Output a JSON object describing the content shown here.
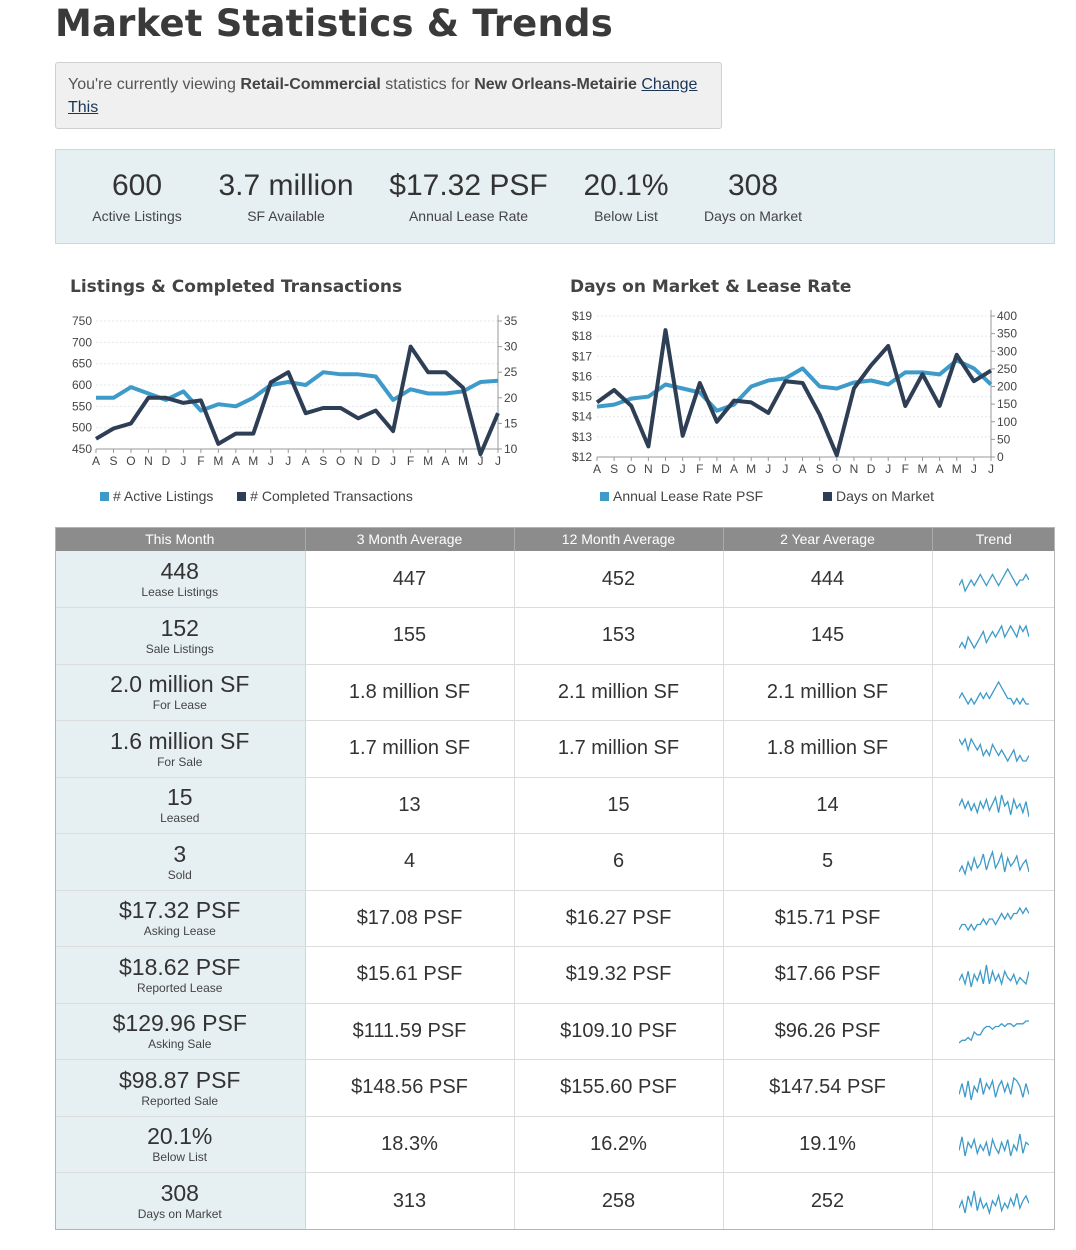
{
  "page": {
    "title": "Market Statistics & Trends",
    "viewing_prefix": "You're currently viewing ",
    "property_type": "Retail-Commercial",
    "viewing_mid": " statistics for ",
    "market": "New Orleans-Metairie",
    "change_link": "Change This"
  },
  "summary": [
    {
      "value": "600",
      "label": "Active Listings"
    },
    {
      "value": "3.7 million",
      "label": "SF Available"
    },
    {
      "value": "$17.32 PSF",
      "label": "Annual Lease Rate"
    },
    {
      "value": "20.1%",
      "label": "Below List"
    },
    {
      "value": "308",
      "label": "Days on Market"
    }
  ],
  "colors": {
    "light_series": "#3d9ac9",
    "dark_series": "#2e3e55",
    "sparkline": "#3d9ac9"
  },
  "chart_data": [
    {
      "type": "line",
      "title": "Listings & Completed Transactions",
      "categories": [
        "A",
        "S",
        "O",
        "N",
        "D",
        "J",
        "F",
        "M",
        "A",
        "M",
        "J",
        "J",
        "A",
        "S",
        "O",
        "N",
        "D",
        "J",
        "F",
        "M",
        "A",
        "M",
        "J",
        "J"
      ],
      "left_ylim": [
        450,
        750
      ],
      "left_ticks": [
        "750",
        "700",
        "650",
        "600",
        "550",
        "500",
        "450"
      ],
      "right_ylim": [
        10,
        35
      ],
      "right_ticks": [
        "35",
        "30",
        "25",
        "20",
        "15",
        "10"
      ],
      "grid": true,
      "series": [
        {
          "name": "# Active Listings",
          "axis": "left",
          "color": "#3d9ac9",
          "values": [
            570,
            570,
            595,
            580,
            565,
            585,
            540,
            555,
            550,
            570,
            600,
            607,
            600,
            630,
            625,
            625,
            620,
            565,
            590,
            580,
            580,
            585,
            607,
            610
          ]
        },
        {
          "name": "# Completed Transactions",
          "axis": "right",
          "color": "#2e3e55",
          "values": [
            12,
            14,
            15,
            20,
            20,
            19,
            19.5,
            11,
            13,
            13,
            23,
            25,
            17,
            18,
            18,
            16,
            17.5,
            13.5,
            30,
            25,
            25,
            22,
            9,
            17
          ]
        }
      ]
    },
    {
      "type": "line",
      "title": "Days on Market & Lease Rate",
      "categories": [
        "A",
        "S",
        "O",
        "N",
        "D",
        "J",
        "F",
        "M",
        "A",
        "M",
        "J",
        "J",
        "A",
        "S",
        "O",
        "N",
        "D",
        "J",
        "F",
        "M",
        "A",
        "M",
        "J",
        "J"
      ],
      "left_ylim": [
        12,
        19
      ],
      "left_ticks": [
        "$19",
        "$18",
        "$17",
        "$16",
        "$15",
        "$14",
        "$13",
        "$12"
      ],
      "right_ylim": [
        0,
        400
      ],
      "right_ticks": [
        "400",
        "350",
        "300",
        "250",
        "200",
        "150",
        "100",
        "50",
        "0"
      ],
      "grid": true,
      "series": [
        {
          "name": "Annual Lease Rate PSF",
          "axis": "left",
          "color": "#3d9ac9",
          "values": [
            14.5,
            14.6,
            14.9,
            15.0,
            15.6,
            15.4,
            15.2,
            14.3,
            14.6,
            15.5,
            15.8,
            15.9,
            16.4,
            15.5,
            15.4,
            15.7,
            15.8,
            15.6,
            16.2,
            16.2,
            16.1,
            16.8,
            16.4,
            15.6
          ]
        },
        {
          "name": "Days on Market",
          "axis": "right",
          "color": "#2e3e55",
          "values": [
            155,
            190,
            145,
            30,
            360,
            60,
            210,
            100,
            160,
            155,
            125,
            215,
            210,
            120,
            5,
            195,
            260,
            315,
            145,
            235,
            145,
            290,
            215,
            245
          ]
        }
      ]
    }
  ],
  "table": {
    "headers": [
      "This Month",
      "3 Month Average",
      "12 Month Average",
      "2 Year Average",
      "Trend"
    ],
    "rows": [
      {
        "value": "448",
        "label": "Lease Listings",
        "m3": "447",
        "m12": "452",
        "y2": "444",
        "trend": [
          5,
          6,
          4,
          5,
          6,
          5,
          6,
          7,
          6,
          5,
          6,
          7,
          6,
          5,
          6,
          7,
          8,
          7,
          6,
          5,
          6,
          6,
          7,
          6
        ]
      },
      {
        "value": "152",
        "label": "Sale Listings",
        "m3": "155",
        "m12": "153",
        "y2": "145",
        "trend": [
          4,
          5,
          4,
          6,
          5,
          4,
          5,
          6,
          7,
          5,
          6,
          7,
          6,
          7,
          8,
          6,
          7,
          8,
          7,
          6,
          8,
          7,
          8,
          6
        ]
      },
      {
        "value": "2.0 million SF",
        "label": "For Lease",
        "m3": "1.8 million SF",
        "m12": "2.1 million SF",
        "y2": "2.1 million SF",
        "trend": [
          6,
          7,
          6,
          5,
          6,
          5,
          6,
          7,
          6,
          7,
          6,
          7,
          8,
          9,
          8,
          7,
          6,
          6,
          5,
          6,
          5,
          6,
          5,
          5
        ]
      },
      {
        "value": "1.6 million SF",
        "label": "For Sale",
        "m3": "1.7 million SF",
        "m12": "1.7 million SF",
        "y2": "1.8 million SF",
        "trend": [
          8,
          7,
          8,
          6,
          8,
          7,
          6,
          7,
          5,
          6,
          5,
          7,
          6,
          5,
          6,
          5,
          4,
          5,
          6,
          4,
          5,
          4,
          4,
          5
        ]
      },
      {
        "value": "15",
        "label": "Leased",
        "m3": "13",
        "m12": "15",
        "y2": "14",
        "trend": [
          7,
          10,
          6,
          9,
          5,
          8,
          4,
          9,
          6,
          10,
          5,
          8,
          11,
          4,
          12,
          7,
          9,
          3,
          10,
          6,
          8,
          4,
          9,
          2
        ]
      },
      {
        "value": "3",
        "label": "Sold",
        "m3": "4",
        "m12": "6",
        "y2": "5",
        "trend": [
          3,
          6,
          2,
          8,
          4,
          10,
          5,
          7,
          12,
          4,
          9,
          13,
          5,
          8,
          12,
          3,
          10,
          6,
          8,
          11,
          4,
          7,
          9,
          3
        ]
      },
      {
        "value": "$17.32 PSF",
        "label": "Asking Lease",
        "m3": "$17.08 PSF",
        "m12": "$16.27 PSF",
        "y2": "$15.71 PSF",
        "trend": [
          4,
          5,
          5,
          4,
          5,
          4,
          5,
          5,
          6,
          5,
          6,
          6,
          5,
          6,
          7,
          6,
          7,
          6,
          7,
          7,
          8,
          7,
          8,
          7
        ]
      },
      {
        "value": "$18.62 PSF",
        "label": "Reported Lease",
        "m3": "$15.61 PSF",
        "m12": "$19.32 PSF",
        "y2": "$17.66 PSF",
        "trend": [
          6,
          8,
          5,
          9,
          4,
          8,
          6,
          9,
          5,
          11,
          5,
          9,
          6,
          8,
          5,
          9,
          7,
          6,
          8,
          5,
          7,
          6,
          5,
          9
        ]
      },
      {
        "value": "$129.96 PSF",
        "label": "Asking Sale",
        "m3": "$111.59 PSF",
        "m12": "$109.10 PSF",
        "y2": "$96.26 PSF",
        "trend": [
          2,
          3,
          3,
          4,
          3,
          6,
          5,
          5,
          7,
          8,
          8,
          7,
          8,
          8,
          9,
          8,
          9,
          9,
          8,
          9,
          9,
          9,
          10,
          10
        ]
      },
      {
        "value": "$98.87 PSF",
        "label": "Reported Sale",
        "m3": "$148.56 PSF",
        "m12": "$155.60 PSF",
        "y2": "$147.54 PSF",
        "trend": [
          5,
          9,
          4,
          10,
          3,
          8,
          6,
          11,
          5,
          9,
          7,
          10,
          4,
          8,
          10,
          6,
          9,
          5,
          11,
          10,
          8,
          4,
          9,
          5
        ]
      },
      {
        "value": "20.1%",
        "label": "Below List",
        "m3": "18.3%",
        "m12": "16.2%",
        "y2": "19.1%",
        "trend": [
          6,
          11,
          4,
          9,
          7,
          10,
          5,
          8,
          6,
          9,
          4,
          10,
          7,
          5,
          9,
          6,
          10,
          4,
          8,
          6,
          12,
          5,
          9,
          8
        ]
      },
      {
        "value": "308",
        "label": "Days on Market",
        "m3": "313",
        "m12": "258",
        "y2": "252",
        "trend": [
          5,
          8,
          3,
          10,
          6,
          12,
          4,
          9,
          5,
          7,
          3,
          8,
          6,
          10,
          4,
          7,
          5,
          9,
          6,
          11,
          5,
          8,
          10,
          7
        ]
      }
    ]
  }
}
